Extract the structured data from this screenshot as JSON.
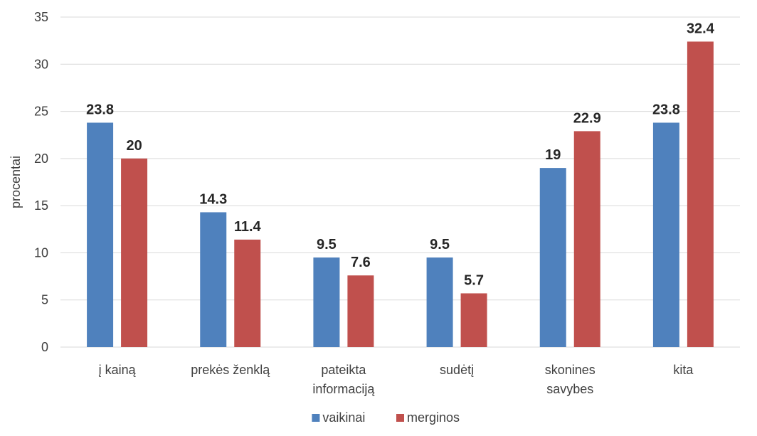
{
  "chart_data": {
    "type": "bar",
    "categories": [
      [
        "į kainą"
      ],
      [
        "prekės ženklą"
      ],
      [
        "pateikta",
        "informaciją"
      ],
      [
        "sudėtį"
      ],
      [
        "skonines",
        "savybes"
      ],
      [
        "kita"
      ]
    ],
    "series": [
      {
        "name": "vaikinai",
        "color": "#4f81bd",
        "values": [
          23.8,
          14.3,
          9.5,
          9.5,
          19,
          23.8
        ]
      },
      {
        "name": "merginos",
        "color": "#c0504d",
        "values": [
          20,
          11.4,
          7.6,
          5.7,
          22.9,
          32.4
        ]
      }
    ],
    "ylabel": "procentai",
    "ylim": [
      0,
      35
    ],
    "yticks": [
      0,
      5,
      10,
      15,
      20,
      25,
      30,
      35
    ],
    "grid": true,
    "legend_position": "bottom",
    "data_labels": true
  }
}
